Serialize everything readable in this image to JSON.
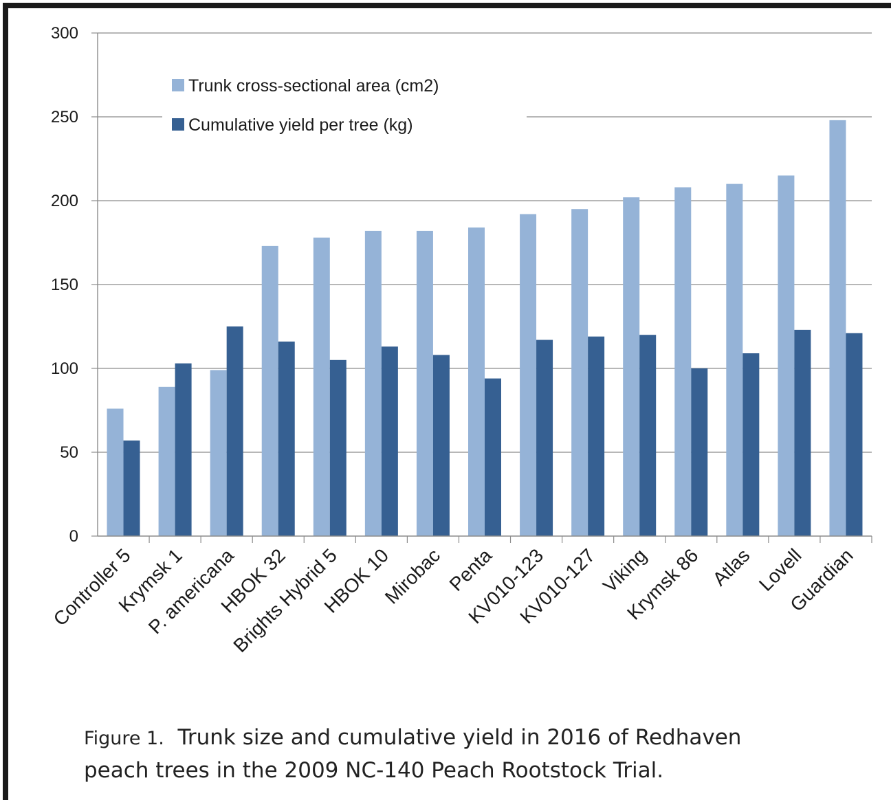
{
  "caption": {
    "label": "Figure 1.",
    "line1": "Trunk size and cumulative yield in 2016 of Redhaven",
    "line2": "peach trees in the 2009 NC-140 Peach Rootstock Trial."
  },
  "colors": {
    "trunk": "#95b3d7",
    "yield": "#366092",
    "grid": "#8c8c8c",
    "axis": "#8c8c8c",
    "text": "#1a1a1a"
  },
  "chart_data": {
    "type": "bar",
    "title": "",
    "xlabel": "",
    "ylabel": "",
    "ylim": [
      0,
      300
    ],
    "yticks": [
      0,
      50,
      100,
      150,
      200,
      250,
      300
    ],
    "grid": true,
    "legend_position": "top-left",
    "categories": [
      "Controller 5",
      "Krymsk 1",
      "P. americana",
      "HBOK 32",
      "Brights Hybrid 5",
      "HBOK 10",
      "Mirobac",
      "Penta",
      "KV010-123",
      "KV010-127",
      "Viking",
      "Krymsk 86",
      "Atlas",
      "Lovell",
      "Guardian"
    ],
    "series": [
      {
        "name": "Trunk cross-sectional area (cm2)",
        "color": "#95b3d7",
        "values": [
          76,
          89,
          99,
          173,
          178,
          182,
          182,
          184,
          192,
          195,
          202,
          208,
          210,
          215,
          248
        ]
      },
      {
        "name": "Cumulative yield per tree (kg)",
        "color": "#366092",
        "values": [
          57,
          103,
          125,
          116,
          105,
          113,
          108,
          94,
          117,
          119,
          120,
          100,
          109,
          123,
          121
        ]
      }
    ]
  }
}
